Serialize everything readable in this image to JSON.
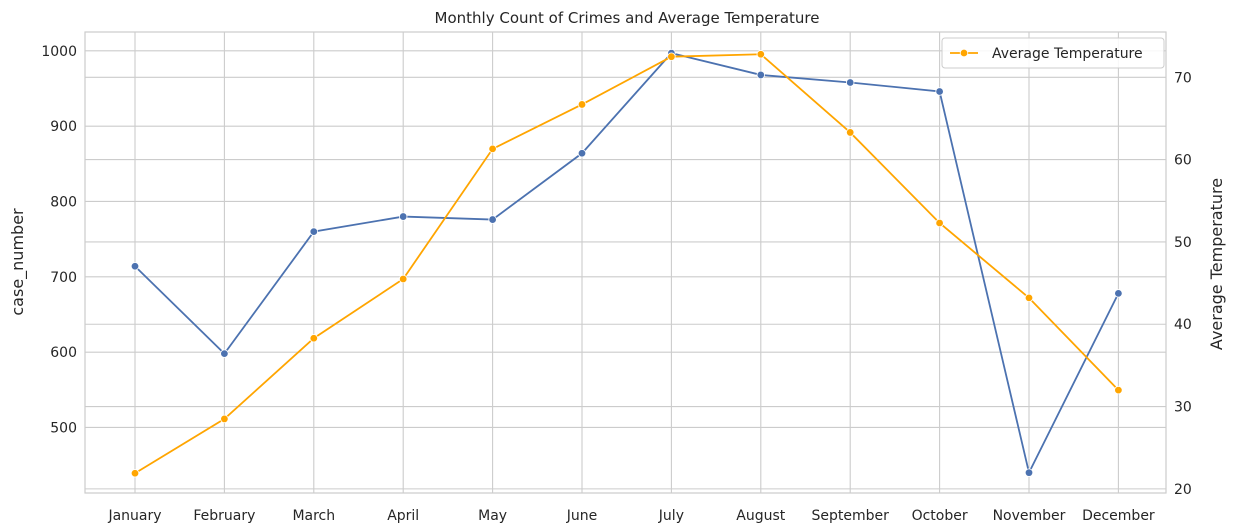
{
  "chart_data": {
    "type": "line",
    "title": "Monthly Count of Crimes and Average Temperature",
    "categories": [
      "January",
      "February",
      "March",
      "April",
      "May",
      "June",
      "July",
      "August",
      "September",
      "October",
      "November",
      "December"
    ],
    "ylabel": "case_number",
    "ylabel_right": "Average Temperature",
    "ylim": [
      413,
      1025
    ],
    "ylim_right": [
      19.5,
      75.5
    ],
    "yticks": [
      500,
      600,
      700,
      800,
      900,
      1000
    ],
    "yticks_right": [
      20,
      30,
      40,
      50,
      60,
      70
    ],
    "grid": true,
    "legend_position": "top-right",
    "series": [
      {
        "axis": "left",
        "color": "#4c72b0",
        "values": [
          714,
          598,
          760,
          780,
          776,
          864,
          997,
          968,
          958,
          946,
          440,
          678
        ]
      },
      {
        "name": "Average Temperature",
        "axis": "right",
        "color": "#ffa500",
        "values": [
          21.9,
          28.5,
          38.3,
          45.5,
          61.3,
          66.7,
          72.5,
          72.8,
          63.3,
          52.3,
          43.2,
          32.0
        ]
      }
    ]
  }
}
